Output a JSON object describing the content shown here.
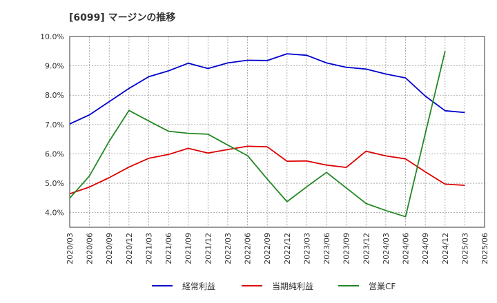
{
  "chart_data": {
    "type": "line",
    "title": "[6099]  マージンの推移",
    "x": [
      "2020/03",
      "2020/06",
      "2020/09",
      "2020/12",
      "2021/03",
      "2021/06",
      "2021/09",
      "2021/12",
      "2022/03",
      "2022/06",
      "2022/09",
      "2022/12",
      "2023/03",
      "2023/06",
      "2023/09",
      "2023/12",
      "2024/03",
      "2024/06",
      "2024/09",
      "2024/12",
      "2025/03",
      "2025/06"
    ],
    "ylim": [
      3.5,
      10.0
    ],
    "yticks": [
      4.0,
      5.0,
      6.0,
      7.0,
      8.0,
      9.0,
      10.0
    ],
    "ytick_labels": [
      "4.0%",
      "5.0%",
      "6.0%",
      "7.0%",
      "8.0%",
      "9.0%",
      "10.0%"
    ],
    "grid": true,
    "legend_position": "bottom",
    "series": [
      {
        "name": "経常利益",
        "color": "#0000cc",
        "values": [
          7.02,
          7.33,
          7.78,
          8.23,
          8.63,
          8.83,
          9.09,
          8.91,
          9.1,
          9.19,
          9.18,
          9.41,
          9.36,
          9.1,
          8.95,
          8.89,
          8.72,
          8.59,
          7.97,
          7.47,
          7.41,
          null
        ]
      },
      {
        "name": "当期純利益",
        "color": "#dd0000",
        "values": [
          4.64,
          4.87,
          5.19,
          5.55,
          5.85,
          5.98,
          6.19,
          6.03,
          6.15,
          6.26,
          6.24,
          5.75,
          5.76,
          5.62,
          5.54,
          6.09,
          5.93,
          5.83,
          5.39,
          4.97,
          4.93,
          null
        ]
      },
      {
        "name": "営業CF",
        "color": "#228822",
        "values": [
          4.49,
          5.25,
          6.43,
          7.48,
          7.12,
          6.77,
          6.7,
          6.67,
          6.3,
          5.94,
          5.14,
          4.37,
          4.88,
          5.37,
          4.84,
          4.31,
          4.07,
          3.86,
          6.69,
          9.5,
          null,
          null
        ]
      }
    ]
  }
}
